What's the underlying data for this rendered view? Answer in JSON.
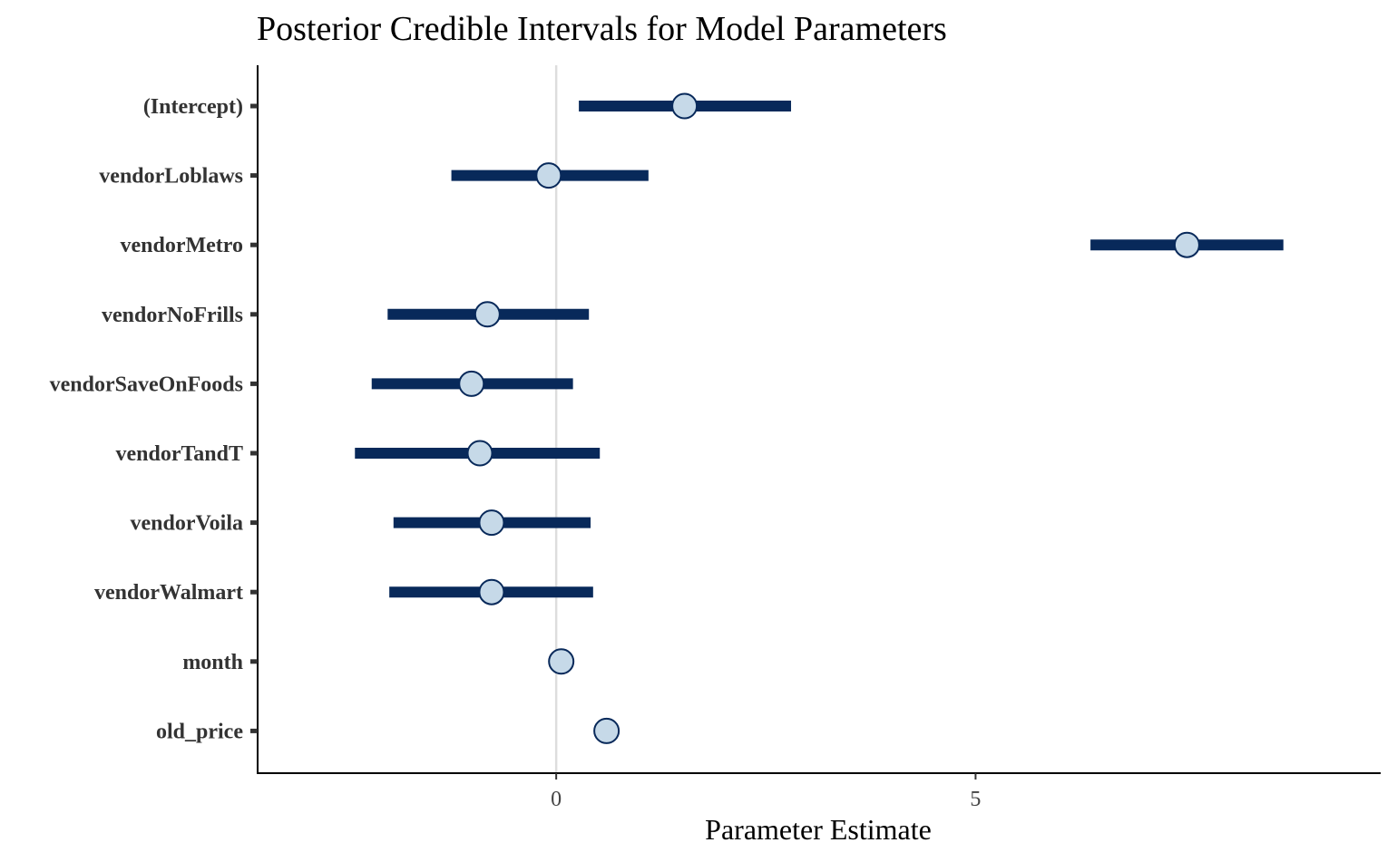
{
  "chart_data": {
    "type": "scatter",
    "title": "Posterior Credible Intervals for Model Parameters",
    "xlabel": "Parameter Estimate",
    "ylabel": "",
    "xlim": [
      -3.56,
      9.83
    ],
    "xticks": [
      0,
      5
    ],
    "xtick_labels": [
      "0",
      "5"
    ],
    "reference_line_x": 0,
    "grid": false,
    "parameters": [
      {
        "name": "(Intercept)",
        "estimate": 1.53,
        "lower": 0.27,
        "upper": 2.8
      },
      {
        "name": "vendorLoblaws",
        "estimate": -0.09,
        "lower": -1.25,
        "upper": 1.1
      },
      {
        "name": "vendorMetro",
        "estimate": 7.52,
        "lower": 6.37,
        "upper": 8.67
      },
      {
        "name": "vendorNoFrills",
        "estimate": -0.82,
        "lower": -2.01,
        "upper": 0.39
      },
      {
        "name": "vendorSaveOnFoods",
        "estimate": -1.01,
        "lower": -2.2,
        "upper": 0.2
      },
      {
        "name": "vendorTandT",
        "estimate": -0.91,
        "lower": -2.4,
        "upper": 0.52
      },
      {
        "name": "vendorVoila",
        "estimate": -0.77,
        "lower": -1.94,
        "upper": 0.41
      },
      {
        "name": "vendorWalmart",
        "estimate": -0.77,
        "lower": -1.99,
        "upper": 0.44
      },
      {
        "name": "month",
        "estimate": 0.06,
        "lower": null,
        "upper": null
      },
      {
        "name": "old_price",
        "estimate": 0.6,
        "lower": null,
        "upper": null
      }
    ],
    "colors": {
      "interval": "#08295a",
      "point_fill": "#c6d9e8",
      "point_stroke": "#08295a",
      "reference_line": "#dddddd",
      "axis": "#000000"
    }
  }
}
